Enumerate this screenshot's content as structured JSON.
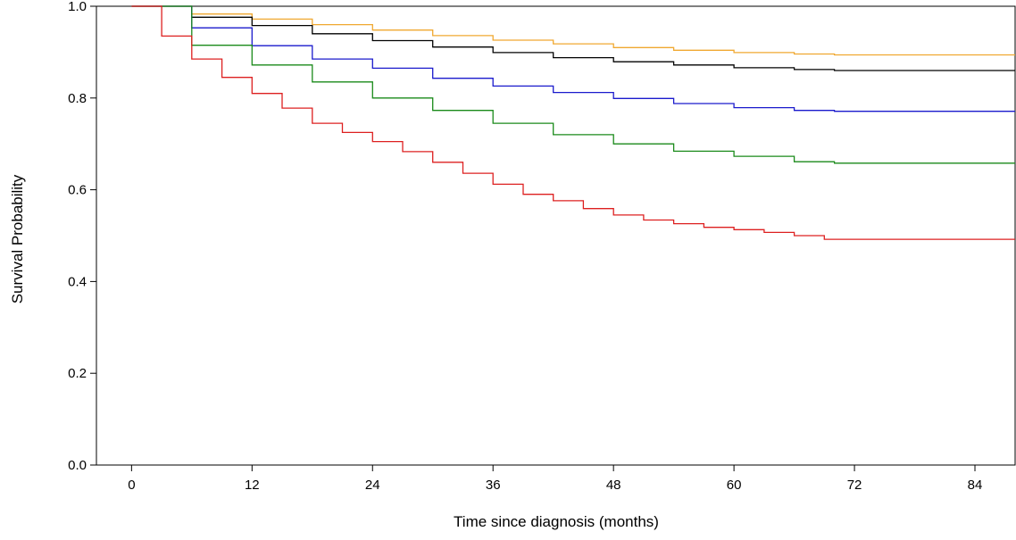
{
  "chart_data": {
    "type": "line",
    "title": "",
    "xlabel": "Time since diagnosis (months)",
    "ylabel": "Survival Probability",
    "xlim": [
      -3.5,
      88
    ],
    "ylim": [
      0,
      1.0
    ],
    "xticks": [
      0,
      12,
      24,
      36,
      48,
      60,
      72,
      84
    ],
    "xtick_labels": [
      "0",
      "12",
      "24",
      "36",
      "48",
      "60",
      "72",
      "84"
    ],
    "yticks": [
      0,
      0.2,
      0.4,
      0.6,
      0.8,
      1.0
    ],
    "ytick_labels": [
      "0.0",
      "0.2",
      "0.4",
      "0.6",
      "0.8",
      "1.0"
    ],
    "grid": false,
    "legend": "none",
    "series": [
      {
        "color": "#f0a830",
        "x": [
          0,
          6,
          12,
          18,
          24,
          30,
          36,
          42,
          48,
          54,
          60,
          66,
          70,
          88
        ],
        "y": [
          1.0,
          0.983,
          0.972,
          0.96,
          0.948,
          0.936,
          0.926,
          0.918,
          0.91,
          0.904,
          0.899,
          0.896,
          0.894,
          0.894
        ]
      },
      {
        "color": "#000000",
        "x": [
          0,
          6,
          12,
          18,
          24,
          30,
          36,
          42,
          48,
          54,
          60,
          66,
          70,
          88
        ],
        "y": [
          1.0,
          0.976,
          0.958,
          0.94,
          0.925,
          0.911,
          0.899,
          0.888,
          0.879,
          0.872,
          0.866,
          0.862,
          0.86,
          0.86
        ]
      },
      {
        "color": "#1a1acc",
        "x": [
          0,
          6,
          12,
          18,
          24,
          30,
          36,
          42,
          48,
          54,
          60,
          66,
          70,
          88
        ],
        "y": [
          1.0,
          0.953,
          0.914,
          0.885,
          0.865,
          0.843,
          0.826,
          0.812,
          0.799,
          0.788,
          0.779,
          0.773,
          0.771,
          0.771
        ]
      },
      {
        "color": "#1a8a1a",
        "x": [
          0,
          6,
          12,
          18,
          24,
          30,
          36,
          42,
          48,
          54,
          60,
          66,
          70,
          88
        ],
        "y": [
          1.0,
          0.915,
          0.872,
          0.835,
          0.8,
          0.773,
          0.745,
          0.72,
          0.7,
          0.684,
          0.673,
          0.661,
          0.658,
          0.658
        ]
      },
      {
        "color": "#dd2020",
        "x": [
          0,
          3,
          6,
          9,
          12,
          15,
          18,
          21,
          24,
          27,
          30,
          33,
          36,
          39,
          42,
          45,
          48,
          51,
          54,
          57,
          60,
          63,
          66,
          69,
          72,
          88
        ],
        "y": [
          1.0,
          0.935,
          0.885,
          0.845,
          0.81,
          0.778,
          0.745,
          0.725,
          0.705,
          0.683,
          0.66,
          0.636,
          0.612,
          0.59,
          0.576,
          0.559,
          0.545,
          0.534,
          0.526,
          0.518,
          0.513,
          0.507,
          0.5,
          0.492,
          0.492,
          0.492
        ]
      }
    ]
  }
}
